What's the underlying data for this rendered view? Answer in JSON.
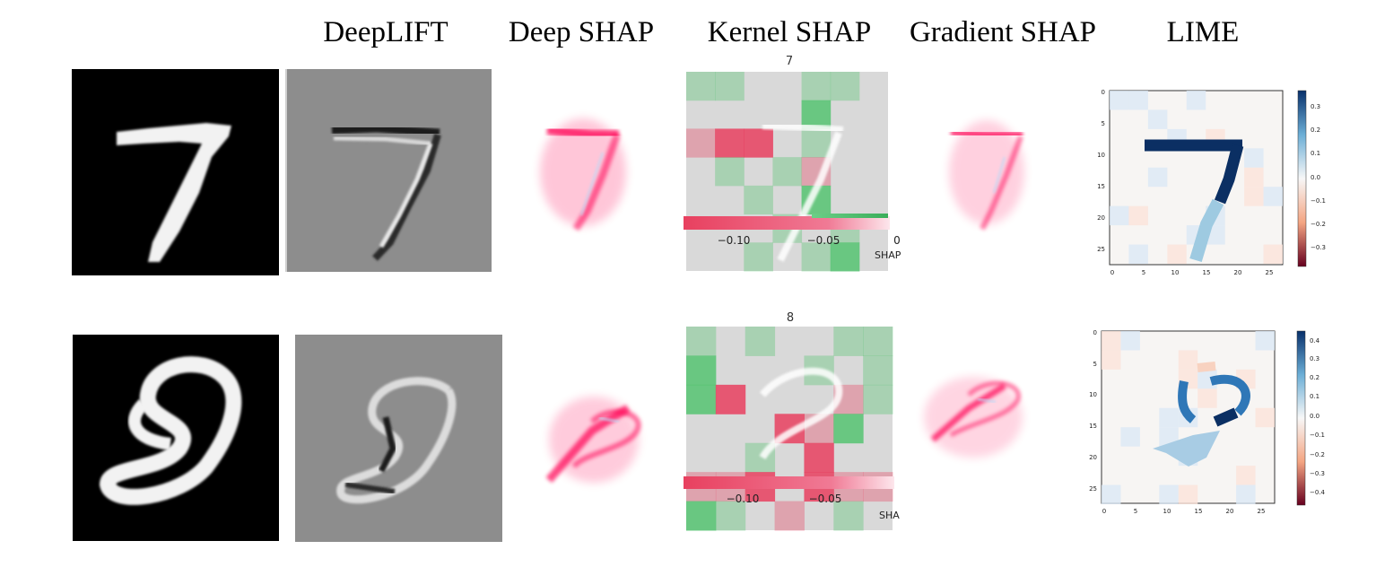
{
  "columns": [
    "DeepLIFT",
    "Deep SHAP",
    "Kernel SHAP",
    "Gradient SHAP",
    "LIME"
  ],
  "rows": [
    {
      "digit": "7",
      "kernel_title": "7",
      "kernel_ticks": [
        "−0.10",
        "−0.05",
        "0"
      ],
      "kernel_axis_label": "SHAP",
      "lime_colorbar_ticks": [
        "0.3",
        "0.2",
        "0.1",
        "0.0",
        "−0.1",
        "−0.2",
        "−0.3"
      ],
      "lime_x_ticks": [
        "0",
        "5",
        "10",
        "15",
        "20",
        "25"
      ],
      "lime_y_ticks": [
        "0",
        "5",
        "10",
        "15",
        "20",
        "25"
      ]
    },
    {
      "digit": "8",
      "kernel_title": "8",
      "kernel_ticks": [
        "−0.10",
        "−0.05"
      ],
      "kernel_axis_label": "SHA",
      "lime_colorbar_ticks": [
        "0.4",
        "0.3",
        "0.2",
        "0.1",
        "0.0",
        "−0.1",
        "−0.2",
        "−0.3",
        "−0.4"
      ],
      "lime_x_ticks": [
        "0",
        "5",
        "10",
        "15",
        "20",
        "25"
      ],
      "lime_y_ticks": [
        "0",
        "5",
        "10",
        "15",
        "20",
        "25"
      ]
    }
  ],
  "colors": {
    "positive_shap": "#ff0052",
    "negative_shap": "#008bfb",
    "kernel_green": "#4cc26a",
    "kernel_red": "#e8405f",
    "lime_blue_dark": "#0b2f63",
    "lime_blue_light": "#9ecae1",
    "lime_red": "#b2182b",
    "background_gray": "#8d8d8d"
  }
}
